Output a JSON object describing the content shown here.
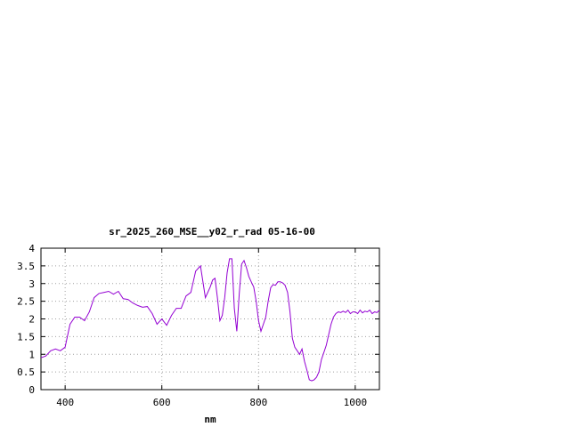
{
  "chart_data": {
    "type": "line",
    "title": "sr_2025_260_MSE__y02_r_rad 05-16-00",
    "xlabel": "nm",
    "ylabel": "",
    "xlim": [
      350,
      1050
    ],
    "ylim": [
      0,
      4
    ],
    "xticks": [
      400,
      600,
      800,
      1000
    ],
    "xtick_labels": [
      "400",
      "600",
      "800",
      "1000"
    ],
    "yticks": [
      0,
      0.5,
      1,
      1.5,
      2,
      2.5,
      3,
      3.5,
      4
    ],
    "ytick_labels": [
      "0",
      "0.5",
      "1",
      "1.5",
      "2",
      "2.5",
      "3",
      "3.5",
      "4"
    ],
    "grid": true,
    "legend": "none",
    "series": [
      {
        "color": "#9400d3",
        "x": [
          350,
          360,
          370,
          380,
          390,
          400,
          410,
          420,
          430,
          440,
          450,
          460,
          470,
          480,
          490,
          500,
          510,
          520,
          530,
          540,
          550,
          560,
          570,
          580,
          590,
          600,
          610,
          620,
          630,
          640,
          650,
          660,
          670,
          680,
          690,
          700,
          705,
          710,
          715,
          720,
          725,
          730,
          735,
          740,
          745,
          750,
          755,
          760,
          765,
          770,
          775,
          780,
          785,
          790,
          795,
          800,
          805,
          810,
          815,
          820,
          825,
          830,
          835,
          840,
          845,
          850,
          855,
          860,
          865,
          870,
          875,
          880,
          885,
          890,
          895,
          900,
          905,
          910,
          915,
          920,
          925,
          930,
          935,
          940,
          945,
          950,
          955,
          960,
          965,
          970,
          975,
          980,
          985,
          990,
          995,
          1000,
          1005,
          1010,
          1015,
          1020,
          1025,
          1030,
          1035,
          1040,
          1045,
          1050
        ],
        "y": [
          0.9,
          0.95,
          1.1,
          1.15,
          1.1,
          1.2,
          1.85,
          2.05,
          2.05,
          1.95,
          2.2,
          2.6,
          2.72,
          2.75,
          2.78,
          2.7,
          2.78,
          2.57,
          2.55,
          2.45,
          2.38,
          2.33,
          2.35,
          2.15,
          1.85,
          2.0,
          1.82,
          2.1,
          2.3,
          2.3,
          2.65,
          2.75,
          3.35,
          3.5,
          2.6,
          2.9,
          3.1,
          3.15,
          2.6,
          1.95,
          2.1,
          2.6,
          3.3,
          3.7,
          3.7,
          2.3,
          1.65,
          2.7,
          3.55,
          3.65,
          3.45,
          3.2,
          3.05,
          2.9,
          2.5,
          1.95,
          1.65,
          1.85,
          2.05,
          2.5,
          2.88,
          2.97,
          2.95,
          3.05,
          3.05,
          3.02,
          2.95,
          2.75,
          2.2,
          1.45,
          1.2,
          1.1,
          1.0,
          1.15,
          0.8,
          0.55,
          0.28,
          0.25,
          0.28,
          0.35,
          0.5,
          0.85,
          1.05,
          1.25,
          1.55,
          1.85,
          2.05,
          2.15,
          2.2,
          2.18,
          2.22,
          2.18,
          2.25,
          2.15,
          2.2,
          2.2,
          2.15,
          2.25,
          2.17,
          2.22,
          2.2,
          2.25,
          2.15,
          2.2,
          2.18,
          2.25
        ]
      }
    ]
  }
}
